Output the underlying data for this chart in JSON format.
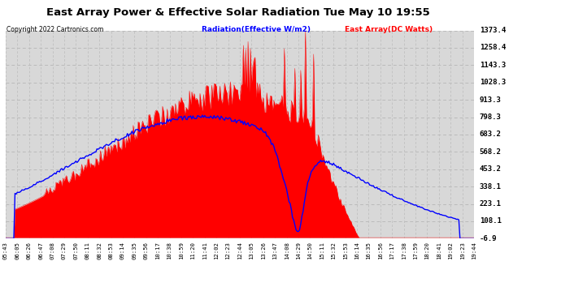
{
  "title": "East Array Power & Effective Solar Radiation Tue May 10 19:55",
  "copyright": "Copyright 2022 Cartronics.com",
  "legend_radiation": "Radiation(Effective W/m2)",
  "legend_array": "East Array(DC Watts)",
  "yticks": [
    1373.4,
    1258.4,
    1143.3,
    1028.3,
    913.3,
    798.3,
    683.2,
    568.2,
    453.2,
    338.1,
    223.1,
    108.1,
    -6.9
  ],
  "ymin": -6.9,
  "ymax": 1373.4,
  "background_color": "#ffffff",
  "plot_bg_color": "#d8d8d8",
  "grid_color": "#bbbbbb",
  "red_color": "#ff0000",
  "blue_color": "#0000ff",
  "title_color": "#000000",
  "copyright_color": "#000000",
  "xtick_labels": [
    "05:43",
    "06:05",
    "06:26",
    "06:47",
    "07:08",
    "07:29",
    "07:50",
    "08:11",
    "08:32",
    "08:53",
    "09:14",
    "09:35",
    "09:56",
    "10:17",
    "10:38",
    "10:59",
    "11:20",
    "11:41",
    "12:02",
    "12:23",
    "12:44",
    "13:05",
    "13:26",
    "13:47",
    "14:08",
    "14:29",
    "14:50",
    "15:11",
    "15:32",
    "15:53",
    "16:14",
    "16:35",
    "16:56",
    "17:17",
    "17:38",
    "17:59",
    "18:20",
    "18:41",
    "19:02",
    "19:23",
    "19:44"
  ]
}
